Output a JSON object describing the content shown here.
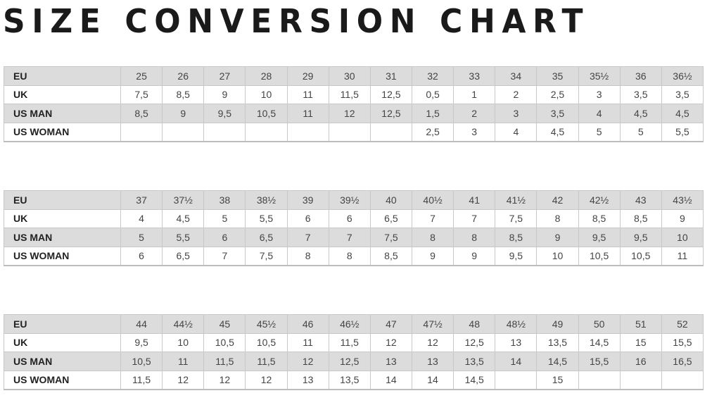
{
  "title": "SIZE CONVERSION CHART",
  "colors": {
    "header_row": "#dcdcdc",
    "border": "#c8c8c8",
    "text": "#444444"
  },
  "row_labels": [
    "EU",
    "UK",
    "US MAN",
    "US WOMAN"
  ],
  "tables": [
    {
      "rows": [
        [
          "25",
          "26",
          "27",
          "28",
          "29",
          "30",
          "31",
          "32",
          "33",
          "34",
          "35",
          "35½",
          "36",
          "36½"
        ],
        [
          "7,5",
          "8,5",
          "9",
          "10",
          "11",
          "11,5",
          "12,5",
          "0,5",
          "1",
          "2",
          "2,5",
          "3",
          "3,5",
          "3,5"
        ],
        [
          "8,5",
          "9",
          "9,5",
          "10,5",
          "11",
          "12",
          "12,5",
          "1,5",
          "2",
          "3",
          "3,5",
          "4",
          "4,5",
          "4,5"
        ],
        [
          "",
          "",
          "",
          "",
          "",
          "",
          "",
          "2,5",
          "3",
          "4",
          "4,5",
          "5",
          "5",
          "5,5"
        ]
      ]
    },
    {
      "rows": [
        [
          "37",
          "37½",
          "38",
          "38½",
          "39",
          "39½",
          "40",
          "40½",
          "41",
          "41½",
          "42",
          "42½",
          "43",
          "43½"
        ],
        [
          "4",
          "4,5",
          "5",
          "5,5",
          "6",
          "6",
          "6,5",
          "7",
          "7",
          "7,5",
          "8",
          "8,5",
          "8,5",
          "9"
        ],
        [
          "5",
          "5,5",
          "6",
          "6,5",
          "7",
          "7",
          "7,5",
          "8",
          "8",
          "8,5",
          "9",
          "9,5",
          "9,5",
          "10"
        ],
        [
          "6",
          "6,5",
          "7",
          "7,5",
          "8",
          "8",
          "8,5",
          "9",
          "9",
          "9,5",
          "10",
          "10,5",
          "10,5",
          "11"
        ]
      ]
    },
    {
      "rows": [
        [
          "44",
          "44½",
          "45",
          "45½",
          "46",
          "46½",
          "47",
          "47½",
          "48",
          "48½",
          "49",
          "50",
          "51",
          "52"
        ],
        [
          "9,5",
          "10",
          "10,5",
          "10,5",
          "11",
          "11,5",
          "12",
          "12",
          "12,5",
          "13",
          "13,5",
          "14,5",
          "15",
          "15,5"
        ],
        [
          "10,5",
          "11",
          "11,5",
          "11,5",
          "12",
          "12,5",
          "13",
          "13",
          "13,5",
          "14",
          "14,5",
          "15,5",
          "16",
          "16,5"
        ],
        [
          "11,5",
          "12",
          "12",
          "12",
          "13",
          "13,5",
          "14",
          "14",
          "14,5",
          "",
          "15",
          "",
          "",
          ""
        ]
      ]
    }
  ]
}
